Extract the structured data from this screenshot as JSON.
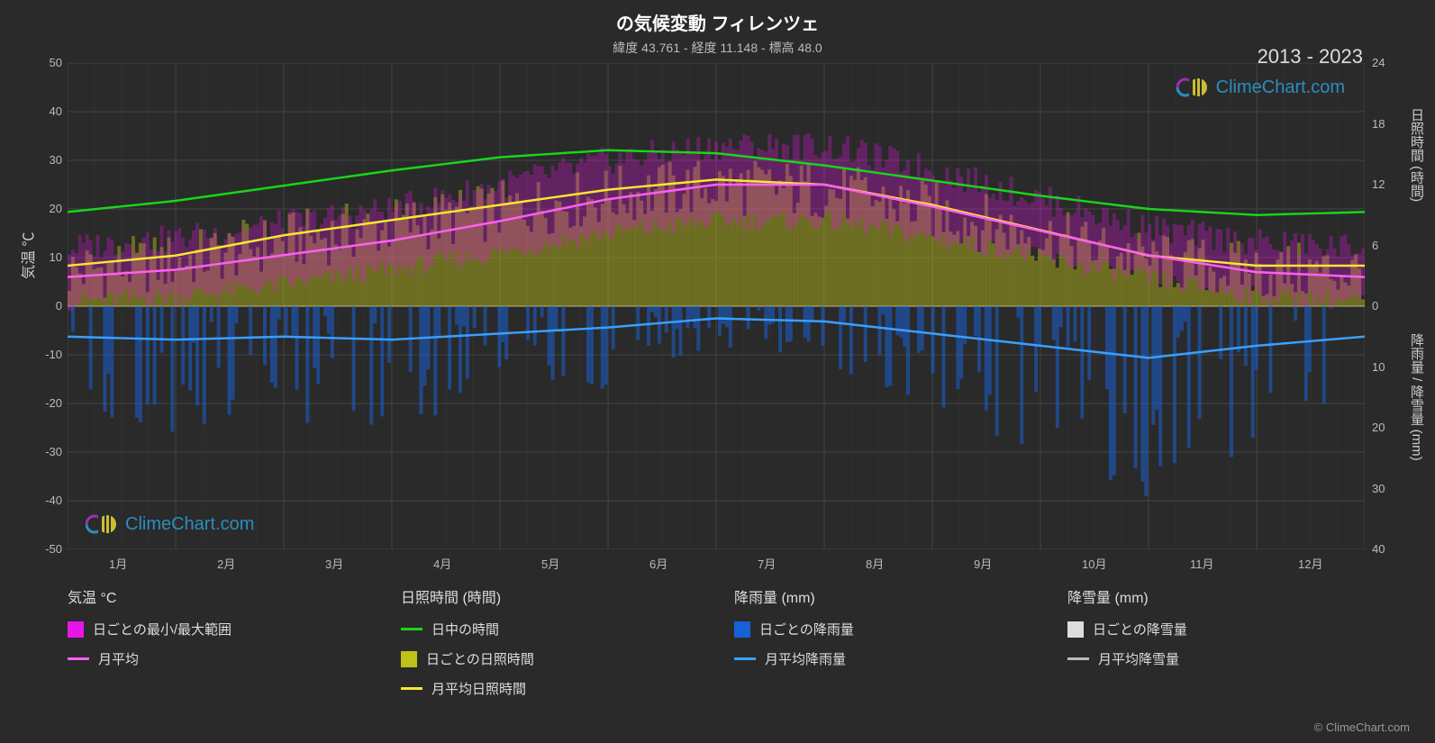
{
  "title": "の気候変動 フィレンツェ",
  "subtitle": "緯度 43.761 - 経度 11.148 - 標高 48.0",
  "date_range": "2013 - 2023",
  "copyright": "© ClimeChart.com",
  "watermark_text": "ClimeChart.com",
  "axes": {
    "left_label": "気温 ℃",
    "right_top_label": "日照時間 (時間)",
    "right_bottom_label": "降雨量 / 降雪量 (mm)",
    "temp_min": -50,
    "temp_max": 50,
    "temp_step": 10,
    "sun_min": 0,
    "sun_max": 24,
    "sun_step": 6,
    "precip_min": 0,
    "precip_max": 40,
    "precip_step": 10,
    "months": [
      "1月",
      "2月",
      "3月",
      "4月",
      "5月",
      "6月",
      "7月",
      "8月",
      "9月",
      "10月",
      "11月",
      "12月"
    ]
  },
  "colors": {
    "background": "#2a2a2a",
    "grid": "#444444",
    "zero_line": "#888888",
    "temp_range": "#e815e8",
    "temp_avg": "#ff5ff3",
    "daylight": "#18d618",
    "sun_daily": "#bfc218",
    "sun_avg": "#f5e92d",
    "rain_daily": "#1860d6",
    "rain_avg": "#3aa0ff",
    "snow_daily": "#dddddd",
    "snow_avg": "#bbbbbb"
  },
  "series": {
    "daylight_hours": [
      9.3,
      10.4,
      11.9,
      13.4,
      14.7,
      15.4,
      15.1,
      13.9,
      12.4,
      10.9,
      9.6,
      9.0
    ],
    "sun_avg_hours": [
      4.0,
      5.0,
      7.0,
      8.5,
      10.0,
      11.5,
      12.5,
      12.0,
      10.0,
      7.5,
      5.0,
      4.0
    ],
    "temp_avg_c": [
      6.0,
      7.5,
      10.5,
      13.5,
      17.5,
      22.0,
      25.0,
      25.0,
      20.5,
      15.5,
      10.5,
      7.0
    ],
    "temp_min_c": [
      1.0,
      2.0,
      4.5,
      7.5,
      11.0,
      15.0,
      17.5,
      17.5,
      14.0,
      10.0,
      5.5,
      2.0
    ],
    "temp_max_c": [
      12.0,
      14.0,
      17.0,
      20.0,
      25.0,
      30.0,
      33.0,
      33.0,
      28.0,
      22.0,
      16.0,
      13.0
    ],
    "rain_avg_mm": [
      5.0,
      5.5,
      5.0,
      5.5,
      4.5,
      3.5,
      2.0,
      2.5,
      4.5,
      6.5,
      8.5,
      6.5
    ]
  },
  "legend": {
    "temp": {
      "header": "気温 °C",
      "range": "日ごとの最小/最大範囲",
      "avg": "月平均"
    },
    "sun": {
      "header": "日照時間 (時間)",
      "daylight": "日中の時間",
      "daily": "日ごとの日照時間",
      "avg": "月平均日照時間"
    },
    "rain": {
      "header": "降雨量 (mm)",
      "daily": "日ごとの降雨量",
      "avg": "月平均降雨量"
    },
    "snow": {
      "header": "降雪量 (mm)",
      "daily": "日ごとの降雪量",
      "avg": "月平均降雪量"
    }
  }
}
